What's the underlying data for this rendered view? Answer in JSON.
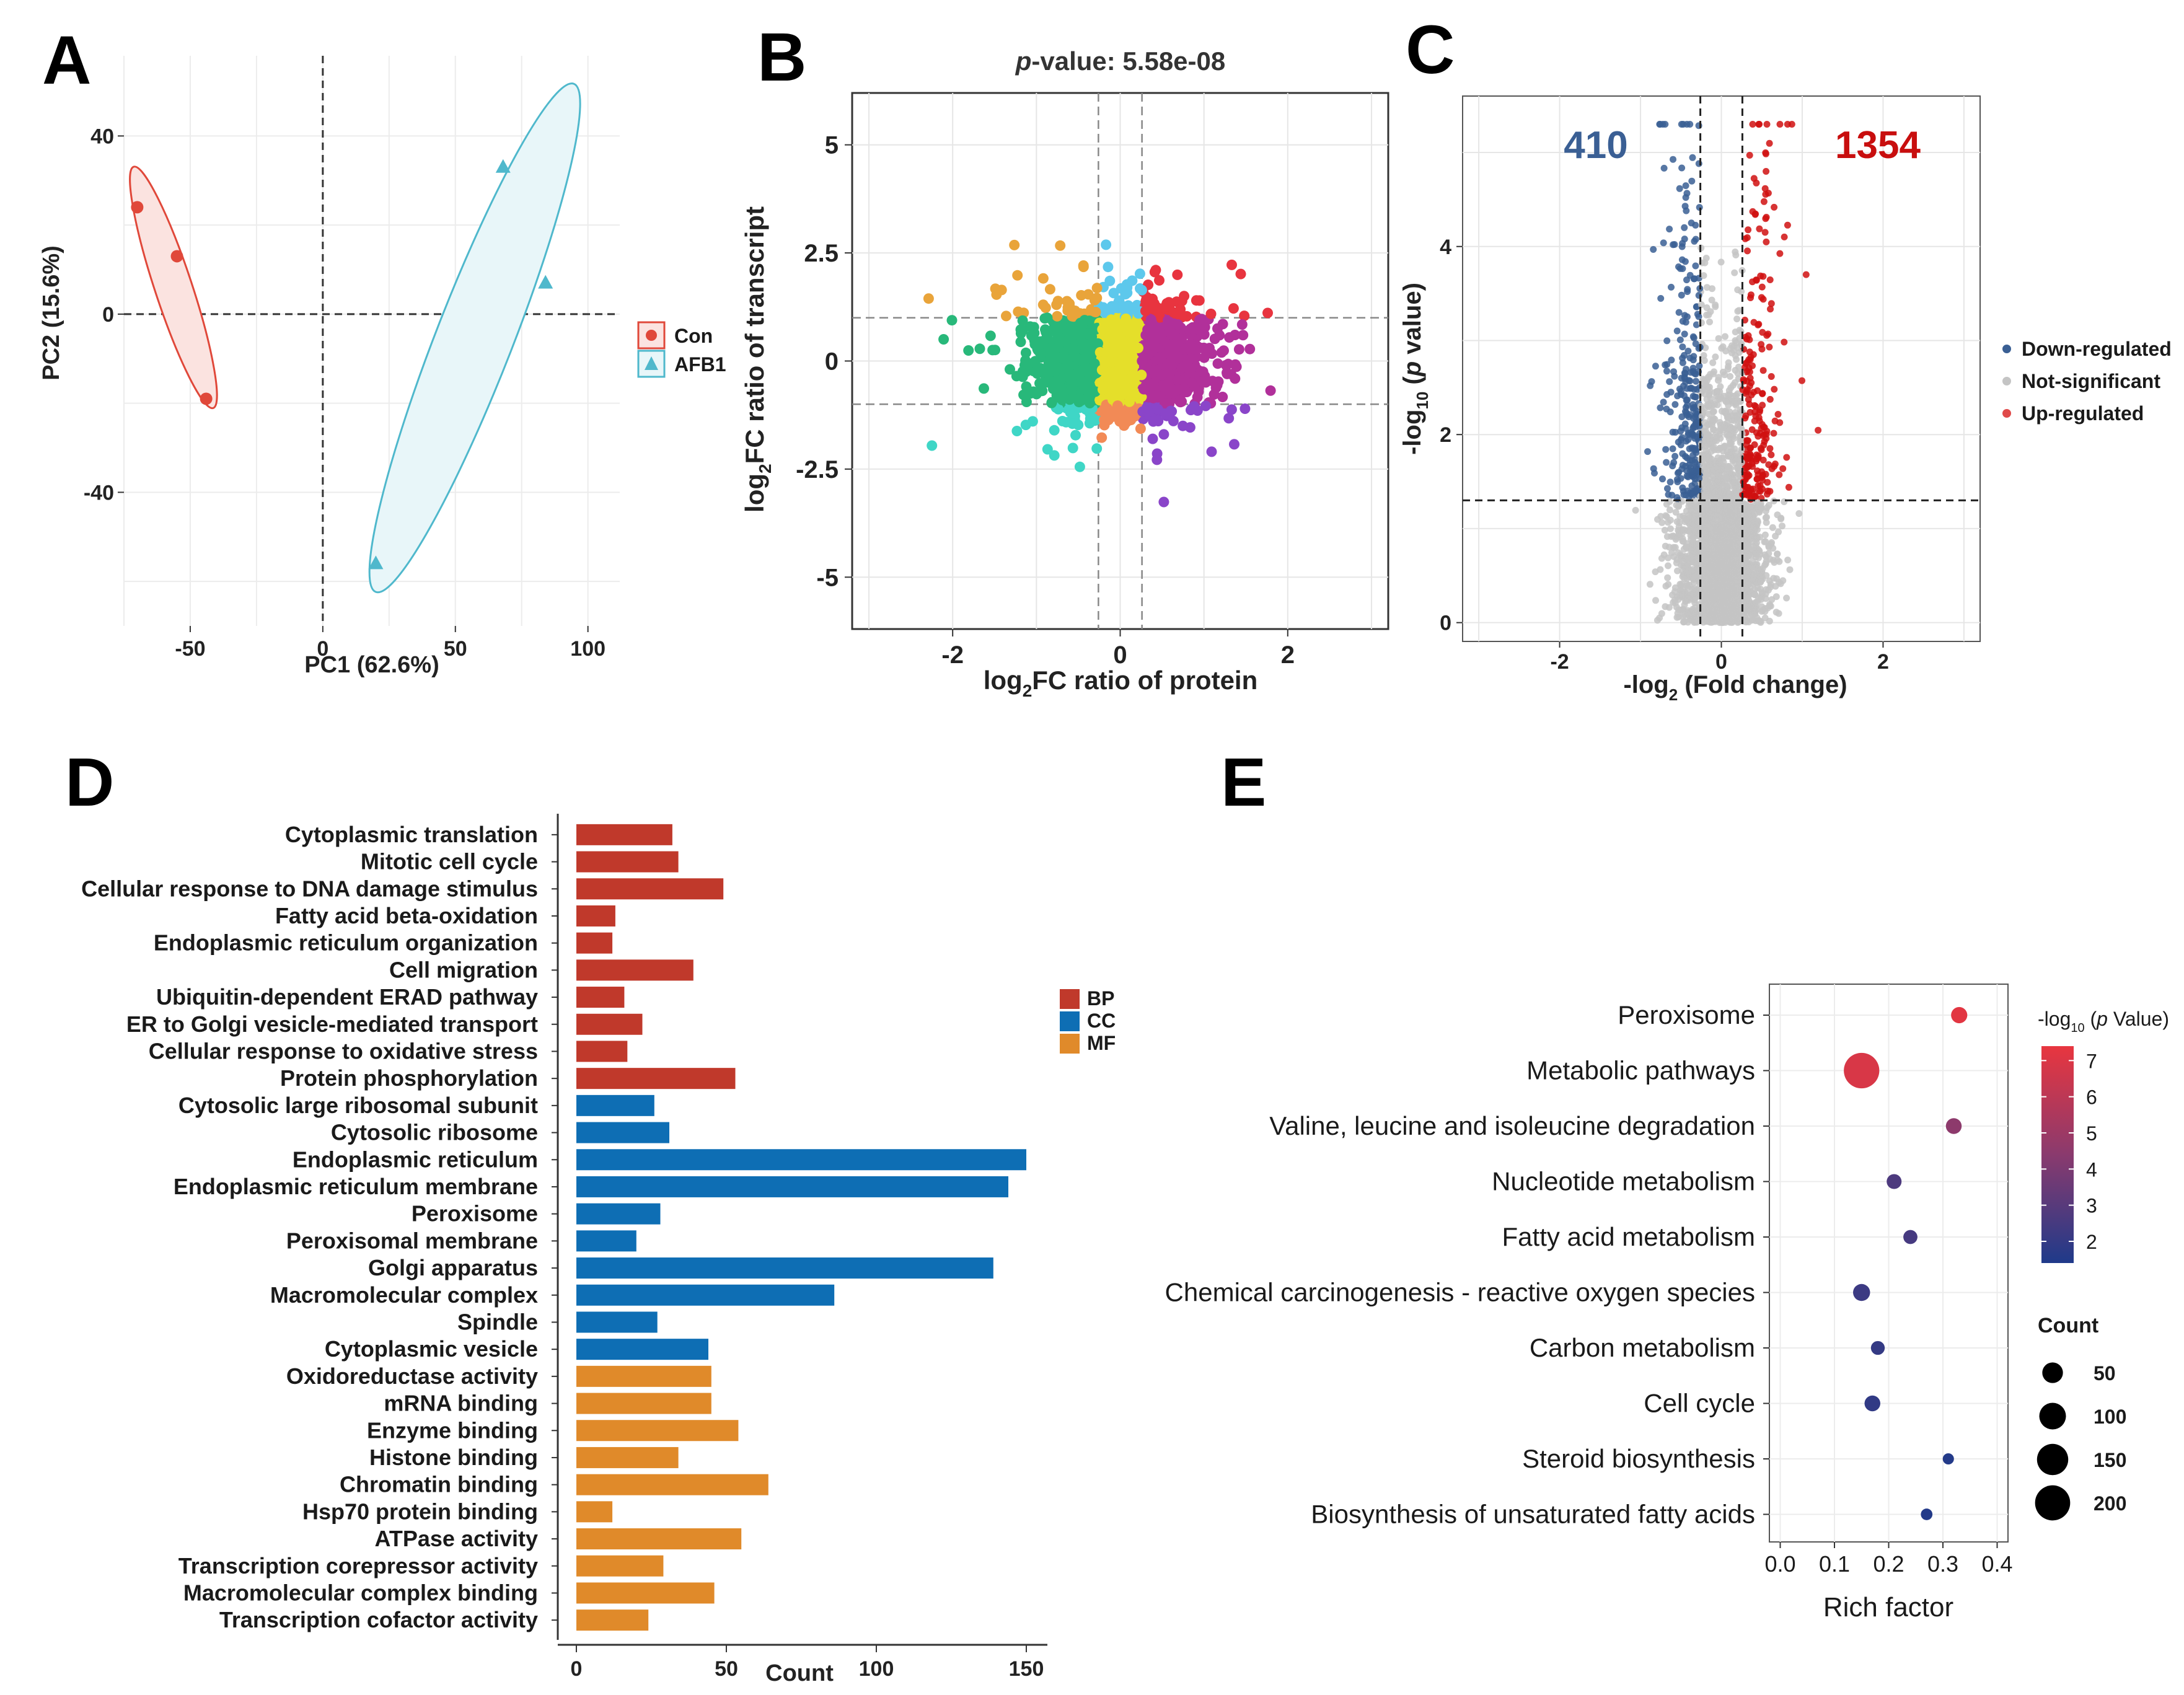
{
  "panel_labels": [
    "A",
    "B",
    "C",
    "D",
    "E"
  ],
  "colors": {
    "con": "#e0483a",
    "afb1": "#4fb8cc",
    "afb1_fill": "#e8f6f9",
    "bp": "#c0392b",
    "cc": "#0e6eb4",
    "mf": "#e08a2a",
    "down": "#3a5f94",
    "up": "#d01010",
    "ns": "#c4c4c4",
    "grad_high": "#e8363f",
    "grad_low": "#1f3a8a"
  },
  "chart_data": [
    {
      "id": "A",
      "type": "scatter",
      "xlabel": "PC1 (62.6%)",
      "ylabel": "PC2 (15.6%)",
      "xlim": [
        -75,
        112
      ],
      "ylim": [
        -70,
        58
      ],
      "xticks": [
        "-50",
        "0",
        "50",
        "100"
      ],
      "xtick_values": [
        -50,
        0,
        50,
        100
      ],
      "yticks": [
        "40",
        "0",
        "-40"
      ],
      "ytick_values": [
        40,
        0,
        -40
      ],
      "series": [
        {
          "name": "Con",
          "points": [
            [
              -70,
              24
            ],
            [
              -55,
              13
            ],
            [
              -44,
              -19
            ]
          ]
        },
        {
          "name": "AFB1",
          "points": [
            [
              68,
              33
            ],
            [
              84,
              7
            ],
            [
              20,
              -56
            ]
          ]
        }
      ]
    },
    {
      "id": "B",
      "type": "scatter",
      "title_prefix": "p",
      "title": "-value: 5.58e-08",
      "xlabel_main": "log",
      "xlabel_sub": "2",
      "xlabel_rest": "FC ratio of protein",
      "ylabel_main": "log",
      "ylabel_sub": "2",
      "ylabel_rest": "FC ratio of transcript",
      "xlim": [
        -3.2,
        3.2
      ],
      "ylim": [
        -6.2,
        6.2
      ],
      "xticks": [
        "-2",
        "0",
        "2"
      ],
      "xtick_values": [
        -2,
        0,
        2
      ],
      "yticks": [
        "5",
        "2.5",
        "0",
        "-2.5",
        "-5"
      ],
      "ytick_values": [
        5,
        2.5,
        0,
        -2.5,
        -5
      ],
      "thresholds": {
        "x": [
          -0.26,
          0.26
        ],
        "y": [
          -1,
          1
        ]
      }
    },
    {
      "id": "C",
      "type": "scatter",
      "xlabel": "-log",
      "xlabel_sub": "2",
      "xlabel_rest": " (Fold change)",
      "ylabel": "-log",
      "ylabel_sub": "10",
      "ylabel_mid": " (",
      "ylabel_p": "p",
      "ylabel_rest": " value)",
      "xlim": [
        -3.2,
        3.2
      ],
      "ylim": [
        -0.2,
        5.6
      ],
      "xticks": [
        "-2",
        "0",
        "2"
      ],
      "xtick_values": [
        -2,
        0,
        2
      ],
      "yticks": [
        "4",
        "2",
        "0"
      ],
      "ytick_values": [
        4,
        2,
        0
      ],
      "down_count": "410",
      "up_count": "1354",
      "legend": [
        "Down-regulated",
        "Not-significant",
        "Up-regulated"
      ],
      "thresholds": {
        "x": [
          -0.26,
          0.26
        ],
        "y": 1.3
      }
    },
    {
      "id": "D",
      "type": "bar",
      "xlabel": "Count",
      "xlim": [
        0,
        155
      ],
      "xticks": [
        "0",
        "50",
        "100",
        "150"
      ],
      "xtick_values": [
        0,
        50,
        100,
        150
      ],
      "legend": [
        "BP",
        "CC",
        "MF"
      ],
      "categories": [
        "Cytoplasmic translation",
        "Mitotic cell cycle",
        "Cellular response to DNA damage stimulus",
        "Fatty acid beta-oxidation",
        "Endoplasmic reticulum organization",
        "Cell migration",
        "Ubiquitin-dependent ERAD pathway",
        "ER to Golgi vesicle-mediated transport",
        "Cellular response to oxidative stress",
        "Protein phosphorylation",
        "Cytosolic large ribosomal subunit",
        "Cytosolic ribosome",
        "Endoplasmic reticulum",
        "Endoplasmic reticulum membrane",
        "Peroxisome",
        "Peroxisomal membrane",
        "Golgi apparatus",
        "Macromolecular complex",
        "Spindle",
        "Cytoplasmic vesicle",
        "Oxidoreductase activity",
        "mRNA binding",
        "Enzyme binding",
        "Histone binding",
        "Chromatin binding",
        "Hsp70 protein binding",
        "ATPase activity",
        "Transcription corepressor activity",
        "Macromolecular complex binding",
        "Transcription cofactor activity"
      ],
      "values": [
        32,
        34,
        49,
        13,
        12,
        39,
        16,
        22,
        17,
        53,
        26,
        31,
        150,
        144,
        28,
        20,
        139,
        86,
        27,
        44,
        45,
        45,
        54,
        34,
        64,
        12,
        55,
        29,
        46,
        24
      ],
      "groups": [
        "BP",
        "BP",
        "BP",
        "BP",
        "BP",
        "BP",
        "BP",
        "BP",
        "BP",
        "BP",
        "CC",
        "CC",
        "CC",
        "CC",
        "CC",
        "CC",
        "CC",
        "CC",
        "CC",
        "CC",
        "MF",
        "MF",
        "MF",
        "MF",
        "MF",
        "MF",
        "MF",
        "MF",
        "MF",
        "MF"
      ]
    },
    {
      "id": "E",
      "type": "scatter",
      "xlabel": "Rich factor",
      "xlim": [
        -0.02,
        0.42
      ],
      "xticks": [
        "0.0",
        "0.1",
        "0.2",
        "0.3",
        "0.4"
      ],
      "xtick_values": [
        0,
        0.1,
        0.2,
        0.3,
        0.4
      ],
      "pathways": [
        "Peroxisome",
        "Metabolic pathways",
        "Valine, leucine and isoleucine degradation",
        "Nucleotide metabolism",
        "Fatty acid metabolism",
        "Chemical carcinogenesis - reactive oxygen species",
        "Carbon metabolism",
        "Cell cycle",
        "Steroid biosynthesis",
        "Biosynthesis of unsaturated fatty acids"
      ],
      "rich_factor": [
        0.33,
        0.15,
        0.32,
        0.21,
        0.24,
        0.15,
        0.18,
        0.17,
        0.31,
        0.27
      ],
      "counts": [
        24,
        205,
        22,
        18,
        15,
        28,
        14,
        22,
        6,
        7
      ],
      "neglog10p": [
        7.2,
        6.9,
        4.5,
        2.7,
        2.5,
        2.2,
        2.0,
        1.9,
        1.5,
        1.5
      ],
      "color_title_pre": "-log",
      "color_title_sub": "10",
      "color_title_mid": " (",
      "color_title_p": "p",
      "color_title_post": " Value)",
      "color_ticks": [
        "7",
        "6",
        "5",
        "4",
        "3",
        "2"
      ],
      "color_tick_values": [
        7,
        6,
        5,
        4,
        3,
        2
      ],
      "color_range": [
        1.4,
        7.4
      ],
      "size_title": "Count",
      "size_legend": [
        "50",
        "100",
        "150",
        "200"
      ],
      "size_legend_values": [
        50,
        100,
        150,
        200
      ]
    }
  ]
}
